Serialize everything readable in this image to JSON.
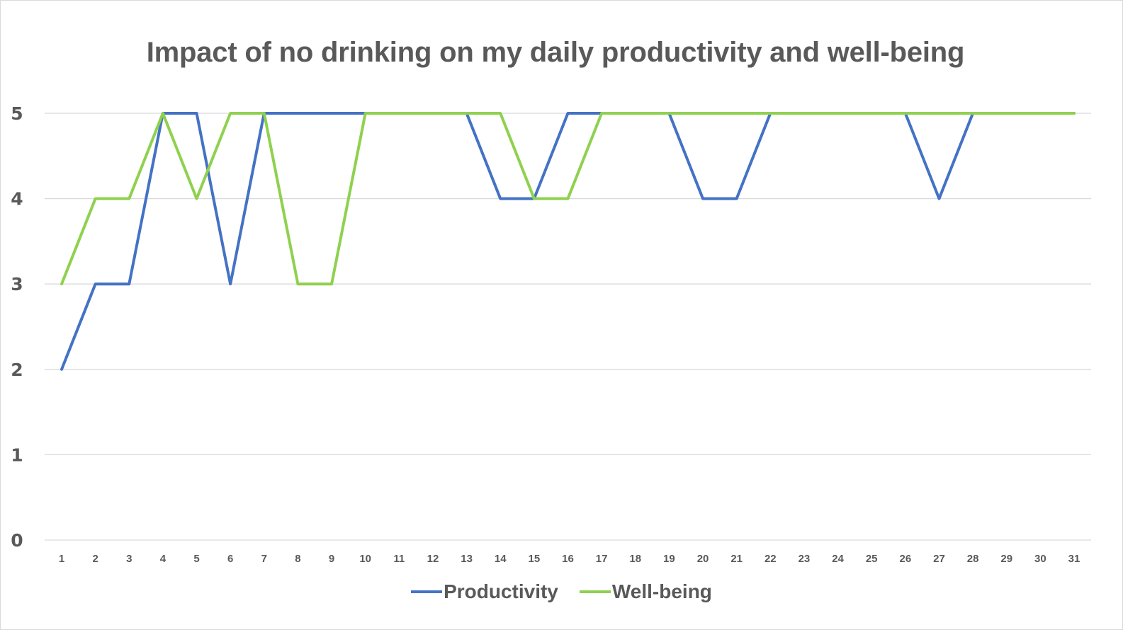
{
  "chart_data": {
    "type": "line",
    "title": "Impact of no drinking on my daily productivity and well-being",
    "xlabel": "",
    "ylabel": "",
    "ylim": [
      0,
      5
    ],
    "yticks": [
      "0",
      "1",
      "2",
      "3",
      "4",
      "5"
    ],
    "categories": [
      "1",
      "2",
      "3",
      "4",
      "5",
      "6",
      "7",
      "8",
      "9",
      "10",
      "11",
      "12",
      "13",
      "14",
      "15",
      "16",
      "17",
      "18",
      "19",
      "20",
      "21",
      "22",
      "23",
      "24",
      "25",
      "26",
      "27",
      "28",
      "29",
      "30",
      "31"
    ],
    "grid": true,
    "legend_position": "bottom",
    "series": [
      {
        "name": "Productivity",
        "color": "#4472C4",
        "values": [
          2,
          3,
          3,
          5,
          5,
          3,
          5,
          5,
          5,
          5,
          5,
          5,
          5,
          4,
          4,
          5,
          5,
          5,
          5,
          4,
          4,
          5,
          5,
          5,
          5,
          5,
          4,
          5,
          5,
          5,
          5
        ]
      },
      {
        "name": "Well-being",
        "color": "#8FD14F",
        "values": [
          3,
          4,
          4,
          5,
          4,
          5,
          5,
          3,
          3,
          5,
          5,
          5,
          5,
          5,
          4,
          4,
          5,
          5,
          5,
          5,
          5,
          5,
          5,
          5,
          5,
          5,
          5,
          5,
          5,
          5,
          5
        ]
      }
    ]
  }
}
